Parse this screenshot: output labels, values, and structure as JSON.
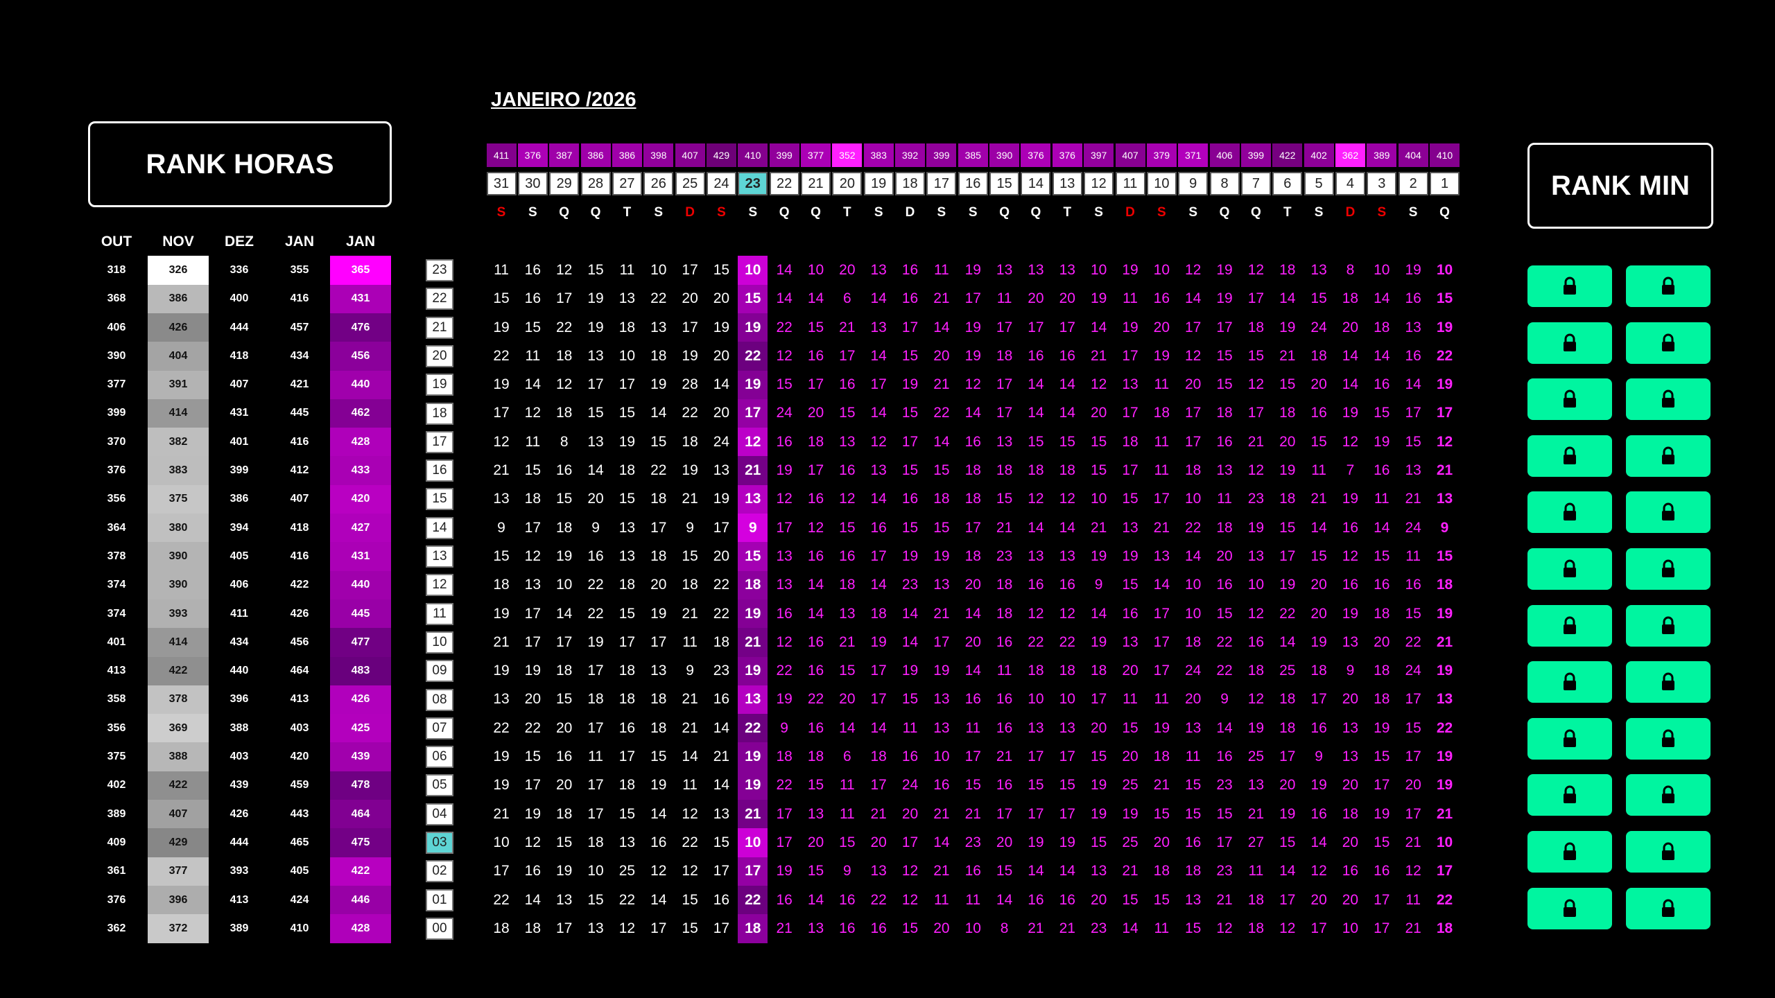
{
  "left_title": "RANK HORAS",
  "right_title": "RANK MIN",
  "month_title": "JANEIRO /2026",
  "rank_horas": {
    "headers": [
      "OUT",
      "NOV",
      "DEZ",
      "JAN",
      "JAN"
    ],
    "rows": [
      [
        318,
        326,
        336,
        355,
        365
      ],
      [
        368,
        386,
        400,
        416,
        431
      ],
      [
        406,
        426,
        444,
        457,
        476
      ],
      [
        390,
        404,
        418,
        434,
        456
      ],
      [
        377,
        391,
        407,
        421,
        440
      ],
      [
        399,
        414,
        431,
        445,
        462
      ],
      [
        370,
        382,
        401,
        416,
        428
      ],
      [
        376,
        383,
        399,
        412,
        433
      ],
      [
        356,
        375,
        386,
        407,
        420
      ],
      [
        364,
        380,
        394,
        418,
        427
      ],
      [
        378,
        390,
        405,
        416,
        431
      ],
      [
        374,
        390,
        406,
        422,
        440
      ],
      [
        374,
        393,
        411,
        426,
        445
      ],
      [
        401,
        414,
        434,
        456,
        477
      ],
      [
        413,
        422,
        440,
        464,
        483
      ],
      [
        358,
        378,
        396,
        413,
        426
      ],
      [
        356,
        369,
        388,
        403,
        425
      ],
      [
        375,
        388,
        403,
        420,
        439
      ],
      [
        402,
        422,
        439,
        459,
        478
      ],
      [
        389,
        407,
        426,
        443,
        464
      ],
      [
        409,
        429,
        444,
        465,
        475
      ],
      [
        361,
        377,
        393,
        405,
        422
      ],
      [
        376,
        396,
        413,
        424,
        446
      ],
      [
        362,
        372,
        389,
        410,
        428
      ]
    ]
  },
  "hours": [
    "23",
    "22",
    "21",
    "20",
    "19",
    "18",
    "17",
    "16",
    "15",
    "14",
    "13",
    "12",
    "11",
    "10",
    "09",
    "08",
    "07",
    "06",
    "05",
    "04",
    "03",
    "02",
    "01",
    "00"
  ],
  "highlighted_hour": "03",
  "top_values": [
    411,
    376,
    387,
    386,
    386,
    398,
    407,
    429,
    410,
    399,
    377,
    352,
    383,
    392,
    399,
    385,
    390,
    376,
    376,
    397,
    407,
    379,
    371,
    406,
    399,
    422,
    402,
    362,
    389,
    404,
    410
  ],
  "dates": [
    31,
    30,
    29,
    28,
    27,
    26,
    25,
    24,
    23,
    22,
    21,
    20,
    19,
    18,
    17,
    16,
    15,
    14,
    13,
    12,
    11,
    10,
    9,
    8,
    7,
    6,
    5,
    4,
    3,
    2,
    1
  ],
  "highlighted_date": 23,
  "weekdays": [
    "S",
    "S",
    "Q",
    "Q",
    "T",
    "S",
    "D",
    "S",
    "S",
    "Q",
    "Q",
    "T",
    "S",
    "D",
    "S",
    "S",
    "Q",
    "Q",
    "T",
    "S",
    "D",
    "S",
    "S",
    "Q",
    "Q",
    "T",
    "S",
    "D",
    "S",
    "S",
    "Q"
  ],
  "weekday_red_indices": [
    0,
    6,
    7,
    20,
    21,
    27,
    28
  ],
  "grid": [
    [
      11,
      16,
      12,
      15,
      11,
      10,
      17,
      15,
      10,
      14,
      10,
      20,
      13,
      16,
      11,
      19,
      13,
      13,
      13,
      10,
      19,
      10,
      12,
      19,
      12,
      18,
      13,
      8,
      10,
      19,
      10
    ],
    [
      15,
      16,
      17,
      19,
      13,
      22,
      20,
      20,
      15,
      14,
      14,
      6,
      14,
      16,
      21,
      17,
      11,
      20,
      20,
      19,
      11,
      16,
      14,
      19,
      17,
      14,
      15,
      18,
      14,
      16,
      15
    ],
    [
      19,
      15,
      22,
      19,
      18,
      13,
      17,
      19,
      19,
      22,
      15,
      21,
      13,
      17,
      14,
      19,
      17,
      17,
      17,
      14,
      19,
      20,
      17,
      17,
      18,
      19,
      24,
      20,
      18,
      13,
      19
    ],
    [
      22,
      11,
      18,
      13,
      10,
      18,
      19,
      20,
      22,
      12,
      16,
      17,
      14,
      15,
      20,
      19,
      18,
      16,
      16,
      21,
      17,
      19,
      12,
      15,
      15,
      21,
      18,
      14,
      14,
      16,
      22
    ],
    [
      19,
      14,
      12,
      17,
      17,
      19,
      28,
      14,
      19,
      15,
      17,
      16,
      17,
      19,
      21,
      12,
      17,
      14,
      14,
      12,
      13,
      11,
      20,
      15,
      12,
      15,
      20,
      14,
      16,
      14,
      19
    ],
    [
      17,
      12,
      18,
      15,
      15,
      14,
      22,
      20,
      17,
      24,
      20,
      15,
      14,
      15,
      22,
      14,
      17,
      14,
      14,
      20,
      17,
      18,
      17,
      18,
      17,
      18,
      16,
      19,
      15,
      17,
      17
    ],
    [
      12,
      11,
      8,
      13,
      19,
      15,
      18,
      24,
      12,
      16,
      18,
      13,
      12,
      17,
      14,
      16,
      13,
      15,
      15,
      15,
      18,
      11,
      17,
      16,
      21,
      20,
      15,
      12,
      19,
      15,
      12
    ],
    [
      21,
      15,
      16,
      14,
      18,
      22,
      19,
      13,
      21,
      19,
      17,
      16,
      13,
      15,
      15,
      18,
      18,
      18,
      18,
      15,
      17,
      11,
      18,
      13,
      12,
      19,
      11,
      7,
      16,
      13,
      21
    ],
    [
      13,
      18,
      15,
      20,
      15,
      18,
      21,
      19,
      13,
      12,
      16,
      12,
      14,
      16,
      18,
      18,
      15,
      12,
      12,
      10,
      15,
      17,
      10,
      11,
      23,
      18,
      21,
      19,
      11,
      21,
      13
    ],
    [
      9,
      17,
      18,
      9,
      13,
      17,
      9,
      17,
      9,
      17,
      12,
      15,
      16,
      15,
      15,
      17,
      21,
      14,
      14,
      21,
      13,
      21,
      22,
      18,
      19,
      15,
      14,
      16,
      14,
      24,
      9
    ],
    [
      15,
      12,
      19,
      16,
      13,
      18,
      15,
      20,
      15,
      13,
      16,
      16,
      17,
      19,
      19,
      18,
      23,
      13,
      13,
      19,
      19,
      13,
      14,
      20,
      13,
      17,
      15,
      12,
      15,
      11,
      15
    ],
    [
      18,
      13,
      10,
      22,
      18,
      20,
      18,
      22,
      18,
      13,
      14,
      18,
      14,
      23,
      13,
      20,
      18,
      16,
      16,
      9,
      15,
      14,
      10,
      16,
      10,
      19,
      20,
      16,
      16,
      16,
      18
    ],
    [
      19,
      17,
      14,
      22,
      15,
      19,
      21,
      22,
      19,
      16,
      14,
      13,
      18,
      14,
      21,
      14,
      18,
      12,
      12,
      14,
      16,
      17,
      10,
      15,
      12,
      22,
      20,
      19,
      18,
      15,
      19
    ],
    [
      21,
      17,
      17,
      19,
      17,
      17,
      11,
      18,
      21,
      12,
      16,
      21,
      19,
      14,
      17,
      20,
      16,
      22,
      22,
      19,
      13,
      17,
      18,
      22,
      16,
      14,
      19,
      13,
      20,
      22,
      21
    ],
    [
      19,
      19,
      18,
      17,
      18,
      13,
      9,
      23,
      19,
      22,
      16,
      15,
      17,
      19,
      19,
      14,
      11,
      18,
      18,
      18,
      20,
      17,
      24,
      22,
      18,
      25,
      18,
      9,
      18,
      24,
      19
    ],
    [
      13,
      20,
      15,
      18,
      18,
      18,
      21,
      16,
      13,
      19,
      22,
      20,
      17,
      15,
      13,
      16,
      16,
      10,
      10,
      17,
      11,
      11,
      20,
      9,
      12,
      18,
      17,
      20,
      18,
      17,
      13
    ],
    [
      22,
      22,
      20,
      17,
      16,
      18,
      21,
      14,
      22,
      9,
      16,
      14,
      14,
      11,
      13,
      11,
      16,
      13,
      13,
      20,
      15,
      19,
      13,
      14,
      19,
      18,
      16,
      13,
      19,
      15,
      22
    ],
    [
      19,
      15,
      16,
      11,
      17,
      15,
      14,
      21,
      19,
      18,
      18,
      6,
      18,
      16,
      10,
      17,
      21,
      17,
      17,
      15,
      20,
      18,
      11,
      16,
      25,
      17,
      9,
      13,
      15,
      17,
      19
    ],
    [
      19,
      17,
      20,
      17,
      18,
      19,
      11,
      14,
      19,
      22,
      15,
      11,
      17,
      24,
      16,
      15,
      16,
      15,
      15,
      19,
      25,
      21,
      15,
      23,
      13,
      20,
      19,
      20,
      17,
      20,
      19
    ],
    [
      21,
      19,
      18,
      17,
      15,
      14,
      12,
      13,
      21,
      17,
      13,
      11,
      21,
      20,
      21,
      21,
      17,
      17,
      17,
      19,
      19,
      15,
      15,
      15,
      21,
      19,
      16,
      18,
      19,
      17,
      21
    ],
    [
      10,
      12,
      15,
      18,
      13,
      16,
      22,
      15,
      10,
      17,
      20,
      15,
      20,
      17,
      14,
      23,
      20,
      19,
      19,
      15,
      25,
      20,
      16,
      17,
      27,
      15,
      14,
      20,
      15,
      21,
      10
    ],
    [
      17,
      16,
      19,
      10,
      25,
      12,
      12,
      17,
      17,
      19,
      15,
      9,
      13,
      12,
      21,
      16,
      15,
      14,
      14,
      13,
      21,
      18,
      18,
      23,
      11,
      14,
      12,
      16,
      16,
      12,
      17
    ],
    [
      22,
      14,
      13,
      15,
      22,
      14,
      15,
      16,
      22,
      16,
      14,
      16,
      22,
      12,
      11,
      11,
      14,
      16,
      16,
      20,
      15,
      15,
      13,
      21,
      18,
      17,
      20,
      20,
      17,
      11,
      22
    ],
    [
      18,
      18,
      17,
      13,
      12,
      17,
      15,
      17,
      18,
      21,
      13,
      16,
      16,
      15,
      20,
      10,
      8,
      21,
      21,
      23,
      14,
      11,
      15,
      12,
      18,
      12,
      17,
      10,
      17,
      21,
      18
    ]
  ],
  "lock_rows": 12,
  "lock_cols": 2,
  "icons": {
    "lock": "lock-icon"
  },
  "colors": {
    "accent_magenta": "#ff00ff",
    "lock_green": "#00f5a0",
    "highlight_cyan": "#5ed5d5"
  }
}
